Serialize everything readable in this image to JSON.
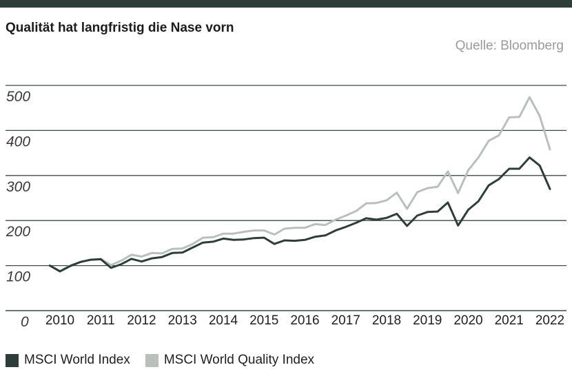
{
  "title": "Qualität hat langfristig die Nase vorn",
  "source": "Quelle: Bloomberg",
  "colors": {
    "top_bar": "#2e3d3a",
    "grid": "#3b4a47"
  },
  "legend": [
    {
      "name": "MSCI World Index",
      "color": "#2e3d3a"
    },
    {
      "name": "MSCI World Quality Index",
      "color": "#b9c0bb"
    }
  ],
  "chart_data": {
    "type": "line",
    "title": "Qualität hat langfristig die Nase vorn",
    "xlabel": "",
    "ylabel": "",
    "ylim": [
      0,
      500
    ],
    "xlim": [
      2009.85,
      2022.25
    ],
    "y_ticks": [
      0,
      100,
      200,
      300,
      400,
      500
    ],
    "y_tick_labels": [
      "0",
      "100",
      "200",
      "300",
      "400",
      "500"
    ],
    "x_ticks": [
      2010,
      2011,
      2012,
      2013,
      2014,
      2015,
      2016,
      2017,
      2018,
      2019,
      2020,
      2021,
      2022
    ],
    "x_tick_labels": [
      "2010",
      "2011",
      "2012",
      "2013",
      "2014",
      "2015",
      "2016",
      "2017",
      "2018",
      "2019",
      "2020",
      "2021",
      "2022"
    ],
    "grid": true,
    "legend_position": "bottom-left",
    "x": [
      2009.75,
      2010.0,
      2010.25,
      2010.5,
      2010.75,
      2011.0,
      2011.25,
      2011.5,
      2011.75,
      2012.0,
      2012.25,
      2012.5,
      2012.75,
      2013.0,
      2013.25,
      2013.5,
      2013.75,
      2014.0,
      2014.25,
      2014.5,
      2014.75,
      2015.0,
      2015.25,
      2015.5,
      2015.75,
      2016.0,
      2016.25,
      2016.5,
      2016.75,
      2017.0,
      2017.25,
      2017.5,
      2017.75,
      2018.0,
      2018.25,
      2018.5,
      2018.75,
      2019.0,
      2019.25,
      2019.5,
      2019.75,
      2020.0,
      2020.25,
      2020.5,
      2020.75,
      2021.0,
      2021.25,
      2021.5,
      2021.75,
      2022.0
    ],
    "series": [
      {
        "name": "MSCI World Index",
        "color": "#2e3d3a",
        "values": [
          100,
          87,
          99,
          108,
          113,
          114,
          95,
          103,
          115,
          109,
          116,
          119,
          128,
          129,
          140,
          151,
          153,
          160,
          157,
          158,
          161,
          162,
          148,
          156,
          155,
          157,
          164,
          167,
          178,
          186,
          195,
          205,
          202,
          206,
          215,
          188,
          211,
          219,
          220,
          240,
          189,
          224,
          243,
          278,
          292,
          315,
          315,
          340,
          322,
          270
        ]
      },
      {
        "name": "MSCI World Quality Index",
        "color": "#b9c0bb",
        "values": [
          100,
          88,
          100,
          108,
          113,
          115,
          101,
          111,
          124,
          120,
          128,
          127,
          137,
          138,
          148,
          162,
          163,
          171,
          171,
          175,
          178,
          178,
          169,
          182,
          184,
          184,
          192,
          190,
          202,
          211,
          221,
          238,
          239,
          245,
          262,
          226,
          263,
          272,
          275,
          309,
          261,
          312,
          340,
          377,
          389,
          429,
          430,
          474,
          432,
          358
        ]
      }
    ]
  }
}
